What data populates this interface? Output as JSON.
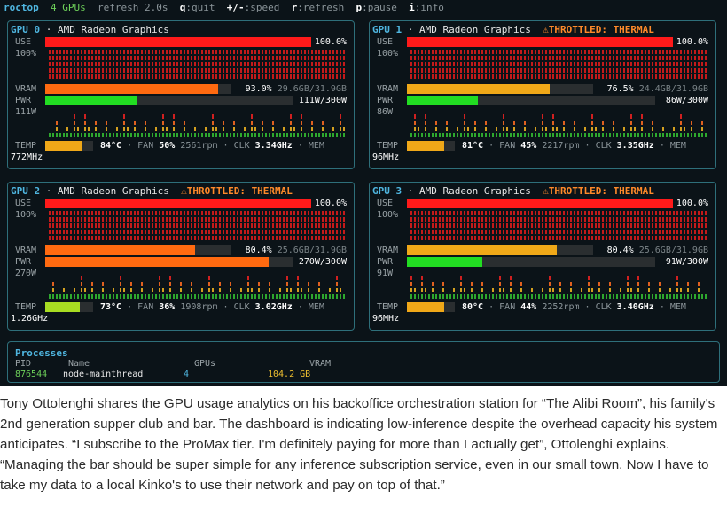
{
  "topbar": {
    "brand": "roctop",
    "gpu_count": "4 GPUs",
    "refresh": "refresh 2.0s",
    "keys": [
      {
        "k": "q",
        "t": ":quit"
      },
      {
        "k": "+/-",
        "t": ":speed"
      },
      {
        "k": "r",
        "t": ":refresh"
      },
      {
        "k": "p",
        "t": ":pause"
      },
      {
        "k": "i",
        "t": ":info"
      }
    ]
  },
  "gpus": [
    {
      "name": "GPU 0",
      "model": "AMD Radeon Graphics",
      "throttle": "",
      "use_label": "USE",
      "use_pct": "100.0%",
      "use_value": 100,
      "hist_label": "100%",
      "vram_label": "VRAM",
      "vram_pct": "93.0%",
      "vram_value": 93.0,
      "vram_detail": "29.6GB/31.9GB",
      "pwr_label": "PWR",
      "pwr_text": "111W/300W",
      "pwr_value": 37,
      "pwr_hist_label": "111W",
      "temp_label": "TEMP",
      "temp": "84°C",
      "temp_value": 84,
      "fan_label": "FAN",
      "fan": "50%",
      "rpm": "2561rpm",
      "clk_label": "CLK",
      "clk": "3.34GHz",
      "mem_label": "MEM",
      "mem_clk": "772MHz"
    },
    {
      "name": "GPU 1",
      "model": "AMD Radeon Graphics",
      "throttle": "⚠THROTTLED: THERMAL",
      "use_label": "USE",
      "use_pct": "100.0%",
      "use_value": 100,
      "hist_label": "100%",
      "vram_label": "VRAM",
      "vram_pct": "76.5%",
      "vram_value": 76.5,
      "vram_detail": "24.4GB/31.9GB",
      "pwr_label": "PWR",
      "pwr_text": "86W/300W",
      "pwr_value": 28.7,
      "pwr_hist_label": "86W",
      "temp_label": "TEMP",
      "temp": "81°C",
      "temp_value": 81,
      "fan_label": "FAN",
      "fan": "45%",
      "rpm": "2217rpm",
      "clk_label": "CLK",
      "clk": "3.35GHz",
      "mem_label": "MEM",
      "mem_clk": "96MHz"
    },
    {
      "name": "GPU 2",
      "model": "AMD Radeon Graphics",
      "throttle": "⚠THROTTLED: THERMAL",
      "use_label": "USE",
      "use_pct": "100.0%",
      "use_value": 100,
      "hist_label": "100%",
      "vram_label": "VRAM",
      "vram_pct": "80.4%",
      "vram_value": 80.4,
      "vram_detail": "25.6GB/31.9GB",
      "pwr_label": "PWR",
      "pwr_text": "270W/300W",
      "pwr_value": 90,
      "pwr_hist_label": "270W",
      "temp_label": "TEMP",
      "temp": "73°C",
      "temp_value": 73,
      "fan_label": "FAN",
      "fan": "36%",
      "rpm": "1908rpm",
      "clk_label": "CLK",
      "clk": "3.02GHz",
      "mem_label": "MEM",
      "mem_clk": "1.26GHz"
    },
    {
      "name": "GPU 3",
      "model": "AMD Radeon Graphics",
      "throttle": "⚠THROTTLED: THERMAL",
      "use_label": "USE",
      "use_pct": "100.0%",
      "use_value": 100,
      "hist_label": "100%",
      "vram_label": "VRAM",
      "vram_pct": "80.4%",
      "vram_value": 80.4,
      "vram_detail": "25.6GB/31.9GB",
      "pwr_label": "PWR",
      "pwr_text": "91W/300W",
      "pwr_value": 30.3,
      "pwr_hist_label": "91W",
      "temp_label": "TEMP",
      "temp": "80°C",
      "temp_value": 80,
      "fan_label": "FAN",
      "fan": "44%",
      "rpm": "2252rpm",
      "clk_label": "CLK",
      "clk": "3.40GHz",
      "mem_label": "MEM",
      "mem_clk": "96MHz"
    }
  ],
  "processes": {
    "title": "Processes",
    "headers": {
      "pid": "PID",
      "name": "Name",
      "gpus": "GPUs",
      "vram": "VRAM"
    },
    "rows": [
      {
        "pid": "876544",
        "name": "node-mainthread",
        "gpus": "4",
        "vram": "104.2 GB"
      }
    ]
  },
  "caption": "Tony Ottolenghi shares the GPU usage analytics on his backoffice orchestration station for “The Alibi Room”, his family's 2nd generation supper club and bar. The dashboard is indicating low-inference despite the overhead capacity his system anticipates. “I subscribe to the ProMax tier. I'm definitely paying for more than I actually get”, Ottolenghi explains. “Managing the bar should be super simple for any inference subscription service, even in our small town. Now I have to take my data to a local Kinko's to use their network and pay on top of that.”",
  "colors": {
    "use_bar": "#ff1a1a",
    "vram_high": "#ff6a10",
    "vram_mid": "#f0a818",
    "pwr_low": "#22dd22",
    "pwr_high": "#ff6a10",
    "temp_warm": "#f0a818",
    "temp_ok": "#a8dd22",
    "accent": "#4fb6e0",
    "process_pid": "#6ed15a",
    "process_vram": "#f0c030"
  }
}
